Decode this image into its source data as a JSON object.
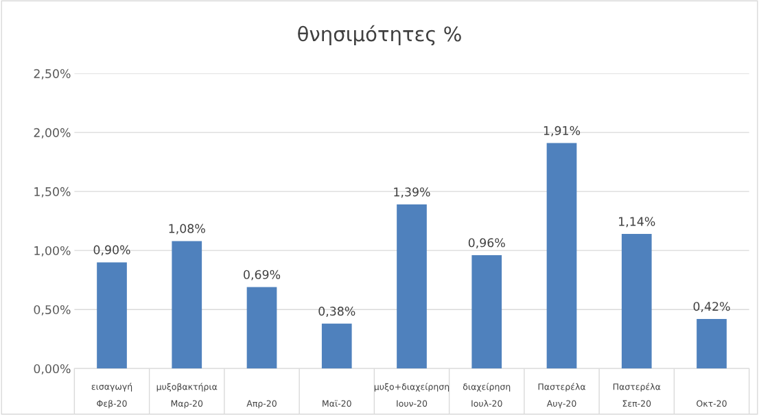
{
  "chart_data": {
    "type": "bar",
    "title": "θνησιμότητες %",
    "categories": [
      "εισαγωγή\nΦεβ-20",
      "μυξοβακτήρια\nΜαρ-20",
      "Απρ-20",
      "Μαϊ-20",
      "μυξο+διαχείρηση\nΙουν-20",
      "διαχείρηση\nΙουλ-20",
      "Παστερέλα\nΑυγ-20",
      "Παστερέλα\nΣεπ-20",
      "Οκτ-20"
    ],
    "values": [
      0.9,
      1.08,
      0.69,
      0.38,
      1.39,
      0.96,
      1.91,
      1.14,
      0.42
    ],
    "value_labels": [
      "0,90%",
      "1,08%",
      "0,69%",
      "0,38%",
      "1,39%",
      "0,96%",
      "1,91%",
      "1,14%",
      "0,42%"
    ],
    "color": "#4f81bd",
    "ylim": [
      0,
      2.5
    ],
    "yticks": [
      {
        "value": 0,
        "label": "0,00%"
      },
      {
        "value": 0.5,
        "label": "0,50%"
      },
      {
        "value": 1.0,
        "label": "1,00%"
      },
      {
        "value": 1.5,
        "label": "1,50%"
      },
      {
        "value": 2.0,
        "label": "2,00%"
      },
      {
        "value": 2.5,
        "label": "2,50%"
      }
    ],
    "grid": "y"
  }
}
